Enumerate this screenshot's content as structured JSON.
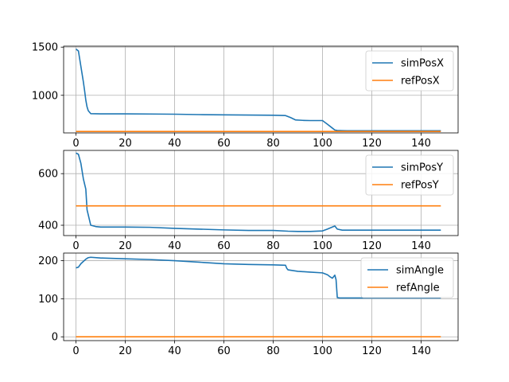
{
  "chart_data": [
    {
      "type": "line",
      "xlim": [
        -5,
        155
      ],
      "ylim": [
        610,
        1510
      ],
      "xticks": [
        0,
        20,
        40,
        60,
        80,
        100,
        120,
        140
      ],
      "yticks": [
        1000,
        1500
      ],
      "grid": true,
      "legend_position": "top-right",
      "series": [
        {
          "name": "simPosX",
          "color": "#1f77b4",
          "x": [
            0,
            1,
            2,
            3,
            3.5,
            4,
            4.5,
            5,
            6,
            10,
            20,
            30,
            40,
            50,
            60,
            70,
            80,
            85,
            87,
            89,
            92,
            95,
            100,
            102,
            104,
            105,
            106,
            108,
            110,
            120,
            130,
            140,
            148
          ],
          "y": [
            1480,
            1460,
            1300,
            1140,
            1050,
            950,
            880,
            840,
            810,
            808,
            808,
            806,
            804,
            800,
            797,
            795,
            793,
            790,
            770,
            745,
            740,
            738,
            738,
            700,
            660,
            640,
            635,
            633,
            632,
            632,
            632,
            632,
            632
          ]
        },
        {
          "name": "refPosX",
          "color": "#ff7f0e",
          "x": [
            0,
            148
          ],
          "y": [
            625,
            625
          ]
        }
      ]
    },
    {
      "type": "line",
      "xlim": [
        -5,
        155
      ],
      "ylim": [
        360,
        690
      ],
      "xticks": [
        0,
        20,
        40,
        60,
        80,
        100,
        120,
        140
      ],
      "yticks": [
        400,
        600
      ],
      "grid": true,
      "legend_position": "top-right",
      "series": [
        {
          "name": "simPosY",
          "color": "#1f77b4",
          "x": [
            0,
            1,
            2,
            3,
            4,
            4.5,
            5,
            6,
            8,
            10,
            20,
            30,
            40,
            50,
            60,
            70,
            80,
            86,
            90,
            95,
            100,
            102,
            104,
            105,
            106,
            108,
            110,
            120,
            130,
            140,
            148
          ],
          "y": [
            680,
            675,
            640,
            580,
            540,
            460,
            440,
            400,
            395,
            393,
            393,
            392,
            388,
            385,
            382,
            380,
            380,
            377,
            376,
            376,
            378,
            385,
            393,
            397,
            385,
            381,
            381,
            381,
            381,
            381,
            381
          ]
        },
        {
          "name": "refPosY",
          "color": "#ff7f0e",
          "x": [
            0,
            148
          ],
          "y": [
            475,
            475
          ]
        }
      ]
    },
    {
      "type": "line",
      "xlim": [
        -5,
        155
      ],
      "ylim": [
        -10,
        220
      ],
      "xticks": [
        0,
        20,
        40,
        60,
        80,
        100,
        120,
        140
      ],
      "yticks": [
        0,
        100,
        200
      ],
      "grid": true,
      "legend_position": "top-right",
      "series": [
        {
          "name": "simAngle",
          "color": "#1f77b4",
          "x": [
            0,
            1,
            2,
            3,
            4,
            5,
            6,
            10,
            20,
            30,
            40,
            50,
            60,
            70,
            80,
            85,
            85.5,
            86,
            90,
            95,
            100,
            102,
            103,
            104,
            105,
            105.5,
            106,
            107,
            110,
            120,
            130,
            140,
            148
          ],
          "y": [
            181,
            183,
            192,
            198,
            204,
            208,
            209,
            207,
            205,
            203,
            200,
            196,
            192,
            190,
            189,
            188,
            180,
            176,
            172,
            170,
            168,
            163,
            158,
            154,
            162,
            150,
            103,
            102,
            102,
            102,
            102,
            102,
            102
          ]
        },
        {
          "name": "refAngle",
          "color": "#ff7f0e",
          "x": [
            0,
            148
          ],
          "y": [
            0,
            0
          ]
        }
      ]
    }
  ]
}
